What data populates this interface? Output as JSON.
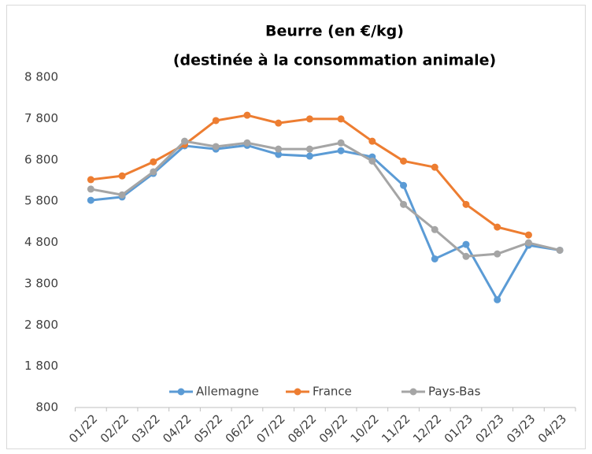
{
  "chart_data": {
    "type": "line",
    "title": [
      "Beurre (en €/kg)",
      "(destinée à la consommation animale)"
    ],
    "categories": [
      "01/22",
      "02/22",
      "03/22",
      "04/22",
      "05/22",
      "06/22",
      "07/22",
      "08/22",
      "09/22",
      "10/22",
      "11/22",
      "12/22",
      "01/23",
      "02/23",
      "03/23",
      "04/23"
    ],
    "series": [
      {
        "name": "Allemagne",
        "color": "#5b9bd5",
        "values": [
          5820,
          5900,
          6470,
          7140,
          7060,
          7150,
          6930,
          6890,
          7020,
          6870,
          6180,
          4400,
          4750,
          3410,
          4730,
          4610
        ]
      },
      {
        "name": "France",
        "color": "#ed7d31",
        "values": [
          6320,
          6410,
          6750,
          7170,
          7750,
          7880,
          7690,
          7790,
          7790,
          7250,
          6770,
          6620,
          5720,
          5170,
          4980,
          null
        ]
      },
      {
        "name": "Pays-Bas",
        "color": "#a5a5a5",
        "values": [
          6090,
          5950,
          6510,
          7250,
          7120,
          7210,
          7060,
          7060,
          7210,
          6770,
          5720,
          5110,
          4460,
          4520,
          4790,
          4610
        ]
      }
    ],
    "ylim": [
      800,
      8800
    ],
    "yticks": [
      {
        "value": 800,
        "label": "800"
      },
      {
        "value": 1800,
        "label": "1 800"
      },
      {
        "value": 2800,
        "label": "2 800"
      },
      {
        "value": 3800,
        "label": "3 800"
      },
      {
        "value": 4800,
        "label": "4 800"
      },
      {
        "value": 5800,
        "label": "5 800"
      },
      {
        "value": 6800,
        "label": "6 800"
      },
      {
        "value": 7800,
        "label": "7 800"
      },
      {
        "value": 8800,
        "label": "8 800"
      }
    ],
    "grid": false,
    "legend": "bottom"
  }
}
